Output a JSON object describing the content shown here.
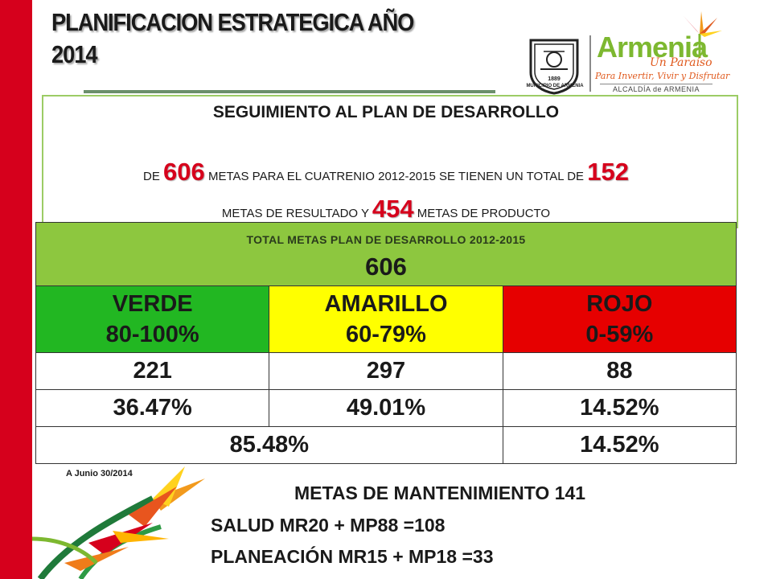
{
  "header": {
    "title_line1": "PLANIFICACION ESTRATEGICA AÑO",
    "title_line2": "2014"
  },
  "logos": {
    "seal_caption": "MUNICIPIO DE ARMENIA",
    "seal_year": "1889",
    "brand_name": "Armenia",
    "brand_subtitle": "Un Paraíso",
    "brand_tagline": "Para Invertir, Vivir y Disfrutar",
    "alcaldia": "ALCALDÍA de ARMENIA"
  },
  "summary": {
    "heading": "SEGUIMIENTO AL PLAN DE DESARROLLO",
    "line1_prefix": "DE",
    "total_goals": "606",
    "line1_middle": "METAS PARA EL CUATRENIO 2012-2015 SE TIENEN UN TOTAL DE",
    "result_goals": "152",
    "line2_prefix": "METAS DE RESULTADO Y",
    "product_goals": "454",
    "line2_suffix": "METAS DE PRODUCTO"
  },
  "table": {
    "caption": "TOTAL METAS PLAN DE DESARROLLO 2012-2015",
    "total": "606",
    "categories": [
      {
        "name": "VERDE",
        "range": "80-100%",
        "color": "#22b722"
      },
      {
        "name": "AMARILLO",
        "range": "60-79%",
        "color": "#ffff00"
      },
      {
        "name": "ROJO",
        "range": "0-59%",
        "color": "#e60000"
      }
    ],
    "counts": [
      "221",
      "297",
      "88"
    ],
    "percentages": [
      "36.47%",
      "49.01%",
      "14.52%"
    ],
    "combined": [
      "85.48%",
      "14.52%"
    ]
  },
  "footnote": "A Junio 30/2014",
  "maintenance": {
    "title": "METAS DE MANTENIMIENTO  141",
    "lines": [
      "SALUD   MR20 + MP88 =108",
      "PLANEACIÓN   MR15 + MP18 =33"
    ]
  },
  "colors": {
    "side_bar": "#d6001c",
    "highlight_number": "#d6001c",
    "table_header": "#8dc73f"
  }
}
